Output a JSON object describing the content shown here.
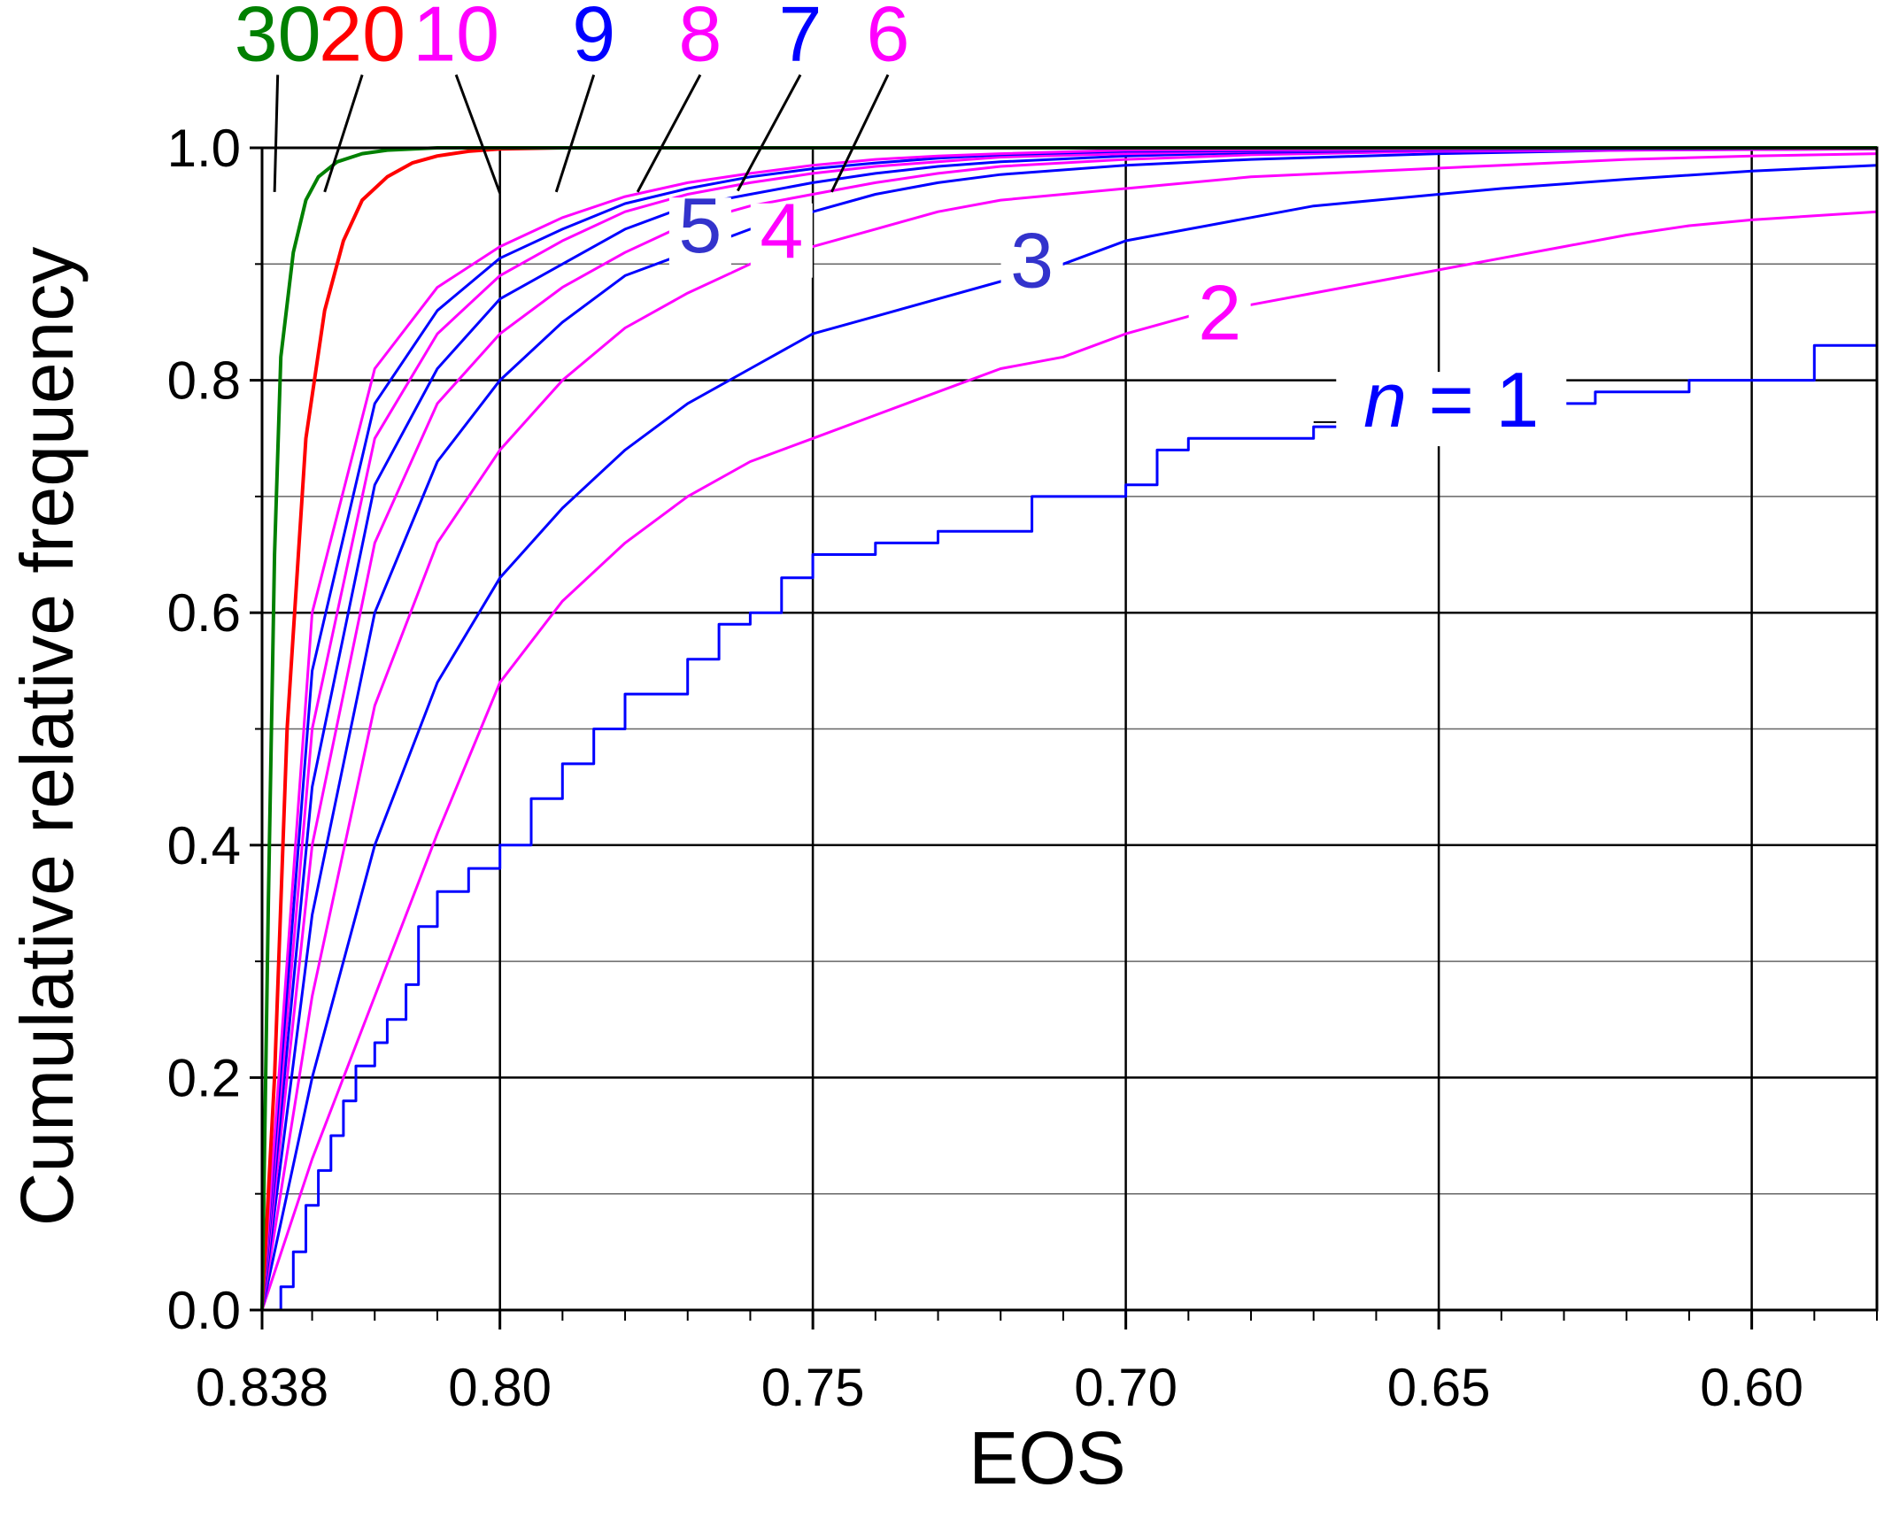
{
  "chart_data": {
    "type": "line",
    "xlabel": "EOS",
    "ylabel": "Cumulative relative frequency",
    "x_reversed": true,
    "xlim": [
      0.838,
      0.58
    ],
    "ylim": [
      0.0,
      1.0
    ],
    "grid": true,
    "x_ticks": [
      {
        "value": 0.838,
        "label": "0.838"
      },
      {
        "value": 0.8,
        "label": "0.80"
      },
      {
        "value": 0.75,
        "label": "0.75"
      },
      {
        "value": 0.7,
        "label": "0.70"
      },
      {
        "value": 0.65,
        "label": "0.65"
      },
      {
        "value": 0.6,
        "label": "0.60"
      }
    ],
    "y_ticks": [
      {
        "value": 0.0,
        "label": "0.0"
      },
      {
        "value": 0.2,
        "label": "0.2"
      },
      {
        "value": 0.4,
        "label": "0.4"
      },
      {
        "value": 0.6,
        "label": "0.6"
      },
      {
        "value": 0.8,
        "label": "0.8"
      },
      {
        "value": 1.0,
        "label": "1.0"
      }
    ],
    "series": [
      {
        "label_prefix": "n",
        "label_op": " = ",
        "label": "1",
        "color": "#0000ff",
        "step": true,
        "points": [
          [
            0.838,
            0.0
          ],
          [
            0.835,
            0.02
          ],
          [
            0.833,
            0.05
          ],
          [
            0.831,
            0.09
          ],
          [
            0.829,
            0.12
          ],
          [
            0.827,
            0.15
          ],
          [
            0.825,
            0.18
          ],
          [
            0.823,
            0.21
          ],
          [
            0.82,
            0.23
          ],
          [
            0.818,
            0.25
          ],
          [
            0.815,
            0.28
          ],
          [
            0.813,
            0.33
          ],
          [
            0.81,
            0.36
          ],
          [
            0.805,
            0.38
          ],
          [
            0.8,
            0.4
          ],
          [
            0.795,
            0.44
          ],
          [
            0.79,
            0.47
          ],
          [
            0.785,
            0.5
          ],
          [
            0.78,
            0.53
          ],
          [
            0.77,
            0.56
          ],
          [
            0.765,
            0.59
          ],
          [
            0.76,
            0.6
          ],
          [
            0.755,
            0.63
          ],
          [
            0.75,
            0.65
          ],
          [
            0.74,
            0.66
          ],
          [
            0.73,
            0.67
          ],
          [
            0.715,
            0.7
          ],
          [
            0.7,
            0.71
          ],
          [
            0.695,
            0.74
          ],
          [
            0.69,
            0.75
          ],
          [
            0.67,
            0.76
          ],
          [
            0.655,
            0.77
          ],
          [
            0.64,
            0.78
          ],
          [
            0.625,
            0.79
          ],
          [
            0.61,
            0.8
          ],
          [
            0.59,
            0.83
          ],
          [
            0.58,
            0.83
          ]
        ]
      },
      {
        "label": "2",
        "color": "#ff00ff",
        "points": [
          [
            0.838,
            0.0
          ],
          [
            0.83,
            0.13
          ],
          [
            0.82,
            0.27
          ],
          [
            0.81,
            0.41
          ],
          [
            0.8,
            0.54
          ],
          [
            0.79,
            0.61
          ],
          [
            0.78,
            0.66
          ],
          [
            0.77,
            0.7
          ],
          [
            0.76,
            0.73
          ],
          [
            0.75,
            0.75
          ],
          [
            0.74,
            0.77
          ],
          [
            0.73,
            0.79
          ],
          [
            0.72,
            0.81
          ],
          [
            0.71,
            0.82
          ],
          [
            0.7,
            0.84
          ],
          [
            0.69,
            0.855
          ],
          [
            0.68,
            0.865
          ],
          [
            0.67,
            0.875
          ],
          [
            0.66,
            0.885
          ],
          [
            0.65,
            0.895
          ],
          [
            0.64,
            0.905
          ],
          [
            0.63,
            0.915
          ],
          [
            0.62,
            0.925
          ],
          [
            0.61,
            0.933
          ],
          [
            0.6,
            0.938
          ],
          [
            0.58,
            0.945
          ]
        ]
      },
      {
        "label": "3",
        "color": "#0000ff",
        "points": [
          [
            0.838,
            0.0
          ],
          [
            0.83,
            0.2
          ],
          [
            0.82,
            0.4
          ],
          [
            0.81,
            0.54
          ],
          [
            0.8,
            0.63
          ],
          [
            0.79,
            0.69
          ],
          [
            0.78,
            0.74
          ],
          [
            0.77,
            0.78
          ],
          [
            0.76,
            0.81
          ],
          [
            0.75,
            0.84
          ],
          [
            0.74,
            0.855
          ],
          [
            0.73,
            0.87
          ],
          [
            0.72,
            0.885
          ],
          [
            0.71,
            0.9
          ],
          [
            0.7,
            0.92
          ],
          [
            0.69,
            0.93
          ],
          [
            0.68,
            0.94
          ],
          [
            0.67,
            0.95
          ],
          [
            0.66,
            0.955
          ],
          [
            0.65,
            0.96
          ],
          [
            0.64,
            0.965
          ],
          [
            0.62,
            0.973
          ],
          [
            0.6,
            0.98
          ],
          [
            0.58,
            0.985
          ]
        ]
      },
      {
        "label": "4",
        "color": "#ff00ff",
        "points": [
          [
            0.838,
            0.0
          ],
          [
            0.83,
            0.27
          ],
          [
            0.82,
            0.52
          ],
          [
            0.81,
            0.66
          ],
          [
            0.8,
            0.74
          ],
          [
            0.79,
            0.8
          ],
          [
            0.78,
            0.845
          ],
          [
            0.77,
            0.875
          ],
          [
            0.76,
            0.9
          ],
          [
            0.75,
            0.915
          ],
          [
            0.74,
            0.93
          ],
          [
            0.73,
            0.945
          ],
          [
            0.72,
            0.955
          ],
          [
            0.7,
            0.965
          ],
          [
            0.68,
            0.975
          ],
          [
            0.66,
            0.98
          ],
          [
            0.64,
            0.985
          ],
          [
            0.62,
            0.99
          ],
          [
            0.6,
            0.993
          ],
          [
            0.58,
            0.995
          ]
        ]
      },
      {
        "label": "5",
        "color": "#0000ff",
        "points": [
          [
            0.838,
            0.0
          ],
          [
            0.83,
            0.34
          ],
          [
            0.82,
            0.6
          ],
          [
            0.81,
            0.73
          ],
          [
            0.8,
            0.8
          ],
          [
            0.79,
            0.85
          ],
          [
            0.78,
            0.89
          ],
          [
            0.77,
            0.91
          ],
          [
            0.76,
            0.93
          ],
          [
            0.75,
            0.945
          ],
          [
            0.74,
            0.96
          ],
          [
            0.73,
            0.97
          ],
          [
            0.72,
            0.977
          ],
          [
            0.7,
            0.985
          ],
          [
            0.68,
            0.99
          ],
          [
            0.65,
            0.995
          ],
          [
            0.62,
            0.998
          ],
          [
            0.58,
            0.999
          ]
        ]
      },
      {
        "label": "6",
        "color": "#ff00ff",
        "points": [
          [
            0.838,
            0.0
          ],
          [
            0.83,
            0.4
          ],
          [
            0.82,
            0.66
          ],
          [
            0.81,
            0.78
          ],
          [
            0.8,
            0.84
          ],
          [
            0.79,
            0.88
          ],
          [
            0.78,
            0.91
          ],
          [
            0.77,
            0.935
          ],
          [
            0.76,
            0.95
          ],
          [
            0.75,
            0.96
          ],
          [
            0.74,
            0.97
          ],
          [
            0.73,
            0.978
          ],
          [
            0.72,
            0.984
          ],
          [
            0.7,
            0.99
          ],
          [
            0.68,
            0.994
          ],
          [
            0.65,
            0.997
          ],
          [
            0.58,
            0.999
          ]
        ]
      },
      {
        "label": "7",
        "color": "#0000ff",
        "points": [
          [
            0.838,
            0.0
          ],
          [
            0.83,
            0.45
          ],
          [
            0.82,
            0.71
          ],
          [
            0.81,
            0.81
          ],
          [
            0.8,
            0.87
          ],
          [
            0.79,
            0.9
          ],
          [
            0.78,
            0.93
          ],
          [
            0.77,
            0.95
          ],
          [
            0.76,
            0.96
          ],
          [
            0.75,
            0.97
          ],
          [
            0.74,
            0.978
          ],
          [
            0.73,
            0.984
          ],
          [
            0.72,
            0.988
          ],
          [
            0.7,
            0.993
          ],
          [
            0.68,
            0.996
          ],
          [
            0.65,
            0.998
          ],
          [
            0.58,
            1.0
          ]
        ]
      },
      {
        "label": "8",
        "color": "#ff00ff",
        "points": [
          [
            0.838,
            0.0
          ],
          [
            0.83,
            0.5
          ],
          [
            0.82,
            0.75
          ],
          [
            0.81,
            0.84
          ],
          [
            0.8,
            0.89
          ],
          [
            0.79,
            0.92
          ],
          [
            0.78,
            0.945
          ],
          [
            0.77,
            0.96
          ],
          [
            0.76,
            0.97
          ],
          [
            0.75,
            0.978
          ],
          [
            0.74,
            0.984
          ],
          [
            0.73,
            0.988
          ],
          [
            0.72,
            0.992
          ],
          [
            0.7,
            0.995
          ],
          [
            0.68,
            0.997
          ],
          [
            0.58,
            1.0
          ]
        ]
      },
      {
        "label": "9",
        "color": "#0000ff",
        "points": [
          [
            0.838,
            0.0
          ],
          [
            0.83,
            0.55
          ],
          [
            0.82,
            0.78
          ],
          [
            0.81,
            0.86
          ],
          [
            0.8,
            0.905
          ],
          [
            0.79,
            0.93
          ],
          [
            0.78,
            0.952
          ],
          [
            0.77,
            0.965
          ],
          [
            0.76,
            0.975
          ],
          [
            0.75,
            0.982
          ],
          [
            0.74,
            0.987
          ],
          [
            0.73,
            0.991
          ],
          [
            0.72,
            0.994
          ],
          [
            0.7,
            0.997
          ],
          [
            0.58,
            1.0
          ]
        ]
      },
      {
        "label": "10",
        "color": "#ff00ff",
        "points": [
          [
            0.838,
            0.0
          ],
          [
            0.83,
            0.6
          ],
          [
            0.82,
            0.81
          ],
          [
            0.81,
            0.88
          ],
          [
            0.8,
            0.915
          ],
          [
            0.79,
            0.94
          ],
          [
            0.78,
            0.958
          ],
          [
            0.77,
            0.97
          ],
          [
            0.76,
            0.978
          ],
          [
            0.75,
            0.985
          ],
          [
            0.74,
            0.99
          ],
          [
            0.73,
            0.993
          ],
          [
            0.72,
            0.995
          ],
          [
            0.7,
            0.998
          ],
          [
            0.58,
            1.0
          ]
        ]
      },
      {
        "label": "20",
        "color": "#ff0000",
        "points": [
          [
            0.838,
            0.0
          ],
          [
            0.836,
            0.2
          ],
          [
            0.834,
            0.5
          ],
          [
            0.831,
            0.75
          ],
          [
            0.828,
            0.86
          ],
          [
            0.825,
            0.92
          ],
          [
            0.822,
            0.955
          ],
          [
            0.818,
            0.975
          ],
          [
            0.814,
            0.987
          ],
          [
            0.81,
            0.993
          ],
          [
            0.805,
            0.997
          ],
          [
            0.8,
            0.999
          ],
          [
            0.79,
            1.0
          ],
          [
            0.58,
            1.0
          ]
        ]
      },
      {
        "label": "30",
        "color": "#008000",
        "points": [
          [
            0.838,
            0.0
          ],
          [
            0.837,
            0.35
          ],
          [
            0.836,
            0.65
          ],
          [
            0.835,
            0.82
          ],
          [
            0.833,
            0.91
          ],
          [
            0.831,
            0.955
          ],
          [
            0.829,
            0.975
          ],
          [
            0.826,
            0.988
          ],
          [
            0.822,
            0.995
          ],
          [
            0.818,
            0.998
          ],
          [
            0.81,
            1.0
          ],
          [
            0.58,
            1.0
          ]
        ]
      }
    ],
    "labels": [
      {
        "series": 0,
        "text_prefix": "n",
        "text_rest": " = 1",
        "lx": 0.648,
        "ly": 0.76,
        "color": "#0000ff",
        "leader": [
          [
            0.67,
            0.764
          ],
          [
            0.638,
            0.764
          ]
        ],
        "leader2": [
          [
            0.618,
            0.78
          ],
          [
            0.596,
            0.78
          ]
        ],
        "mask": true
      },
      {
        "series": 1,
        "text": "2",
        "lx": 0.685,
        "ly": 0.835,
        "color": "#ff00ff",
        "mask": true
      },
      {
        "series": 2,
        "text": "3",
        "lx": 0.715,
        "ly": 0.88,
        "color": "#3333cc",
        "mask": true
      },
      {
        "series": 3,
        "text": "4",
        "lx": 0.755,
        "ly": 0.905,
        "color": "#ff00ff",
        "mask": true
      },
      {
        "series": 4,
        "text": "5",
        "lx": 0.768,
        "ly": 0.91,
        "color": "#3333cc",
        "mask": true
      },
      {
        "series": 5,
        "text": "6",
        "lx": 0.738,
        "ly": 1.075,
        "color": "#ff00ff",
        "target": [
          0.747,
          0.962
        ]
      },
      {
        "series": 6,
        "text": "7",
        "lx": 0.752,
        "ly": 1.075,
        "color": "#0000ff",
        "target": [
          0.762,
          0.963
        ]
      },
      {
        "series": 7,
        "text": "8",
        "lx": 0.768,
        "ly": 1.075,
        "color": "#ff00ff",
        "target": [
          0.778,
          0.962
        ]
      },
      {
        "series": 8,
        "text": "9",
        "lx": 0.785,
        "ly": 1.075,
        "color": "#0000ff",
        "target": [
          0.791,
          0.962
        ]
      },
      {
        "series": 9,
        "text": "10",
        "lx": 0.807,
        "ly": 1.075,
        "color": "#ff00ff",
        "target": [
          0.8,
          0.961
        ]
      },
      {
        "series": 10,
        "text": "20",
        "lx": 0.822,
        "ly": 1.075,
        "color": "#ff0000",
        "target": [
          0.828,
          0.962
        ]
      },
      {
        "series": 11,
        "text": "30",
        "lx": 0.8355,
        "ly": 1.075,
        "color": "#008000",
        "target": [
          0.836,
          0.962
        ]
      }
    ]
  }
}
